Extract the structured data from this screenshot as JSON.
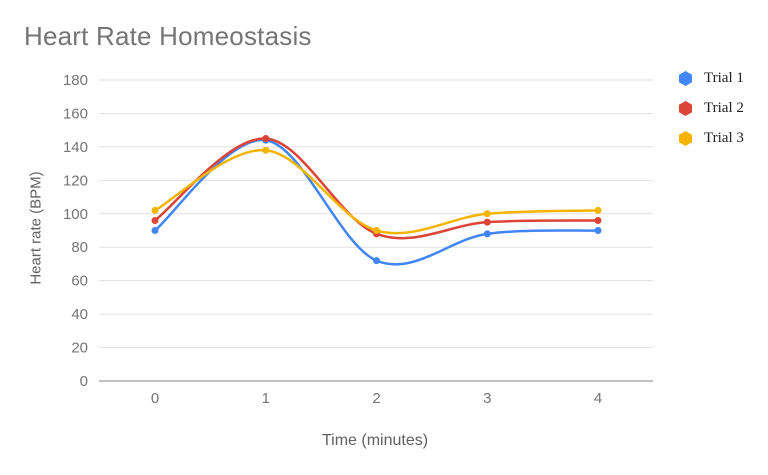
{
  "chart_data": {
    "type": "line",
    "title": "Heart Rate Homeostasis",
    "xlabel": "Time (minutes)",
    "ylabel": "Heart rate (BPM)",
    "categories": [
      "0",
      "1",
      "2",
      "3",
      "4"
    ],
    "series": [
      {
        "name": "Trial 1",
        "color": "#4285f4",
        "values": [
          90,
          144,
          72,
          88,
          90
        ]
      },
      {
        "name": "Trial 2",
        "color": "#db4437",
        "values": [
          96,
          145,
          88,
          95,
          96
        ]
      },
      {
        "name": "Trial 3",
        "color": "#f4b400",
        "values": [
          102,
          138,
          90,
          100,
          102
        ]
      }
    ],
    "ylim": [
      0,
      180
    ],
    "yticks": [
      0,
      20,
      40,
      60,
      80,
      100,
      120,
      140,
      160,
      180
    ],
    "grid": "horizontal",
    "legend_position": "right",
    "line_smoothing": true
  },
  "colors": {
    "title_text": "#757575",
    "tick_text": "#757575",
    "axis_title_text": "#616161",
    "legend_text": "#222222",
    "gridline": "#e0e0e0",
    "baseline": "#9e9e9e",
    "background": "#ffffff"
  }
}
